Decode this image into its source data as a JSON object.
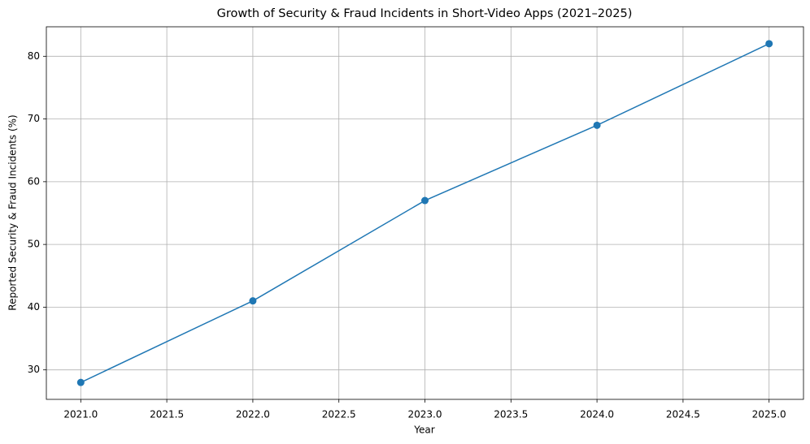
{
  "chart_data": {
    "type": "line",
    "title": "Growth of Security & Fraud Incidents in Short-Video Apps (2021–2025)",
    "x_label": "Year",
    "y_label": "Reported Security & Fraud Incidents (%)",
    "x": [
      2021,
      2022,
      2023,
      2024,
      2025
    ],
    "values": [
      28,
      41,
      57,
      69,
      82
    ],
    "color": "#1f77b4",
    "markers": true,
    "grid": true,
    "xlim": [
      2020.8,
      2025.2
    ],
    "xticks": [
      {
        "value": 2021,
        "label": "2021.0"
      },
      {
        "value": 2021.5,
        "label": "2021.5"
      },
      {
        "value": 2022,
        "label": "2022.0"
      },
      {
        "value": 2022.5,
        "label": "2022.5"
      },
      {
        "value": 2023,
        "label": "2023.0"
      },
      {
        "value": 2023.5,
        "label": "2023.5"
      },
      {
        "value": 2024,
        "label": "2024.0"
      },
      {
        "value": 2024.5,
        "label": "2024.5"
      },
      {
        "value": 2025,
        "label": "2025.0"
      }
    ],
    "ylim": [
      25.3,
      84.7
    ],
    "yticks": [
      30,
      40,
      50,
      60,
      70,
      80
    ]
  }
}
